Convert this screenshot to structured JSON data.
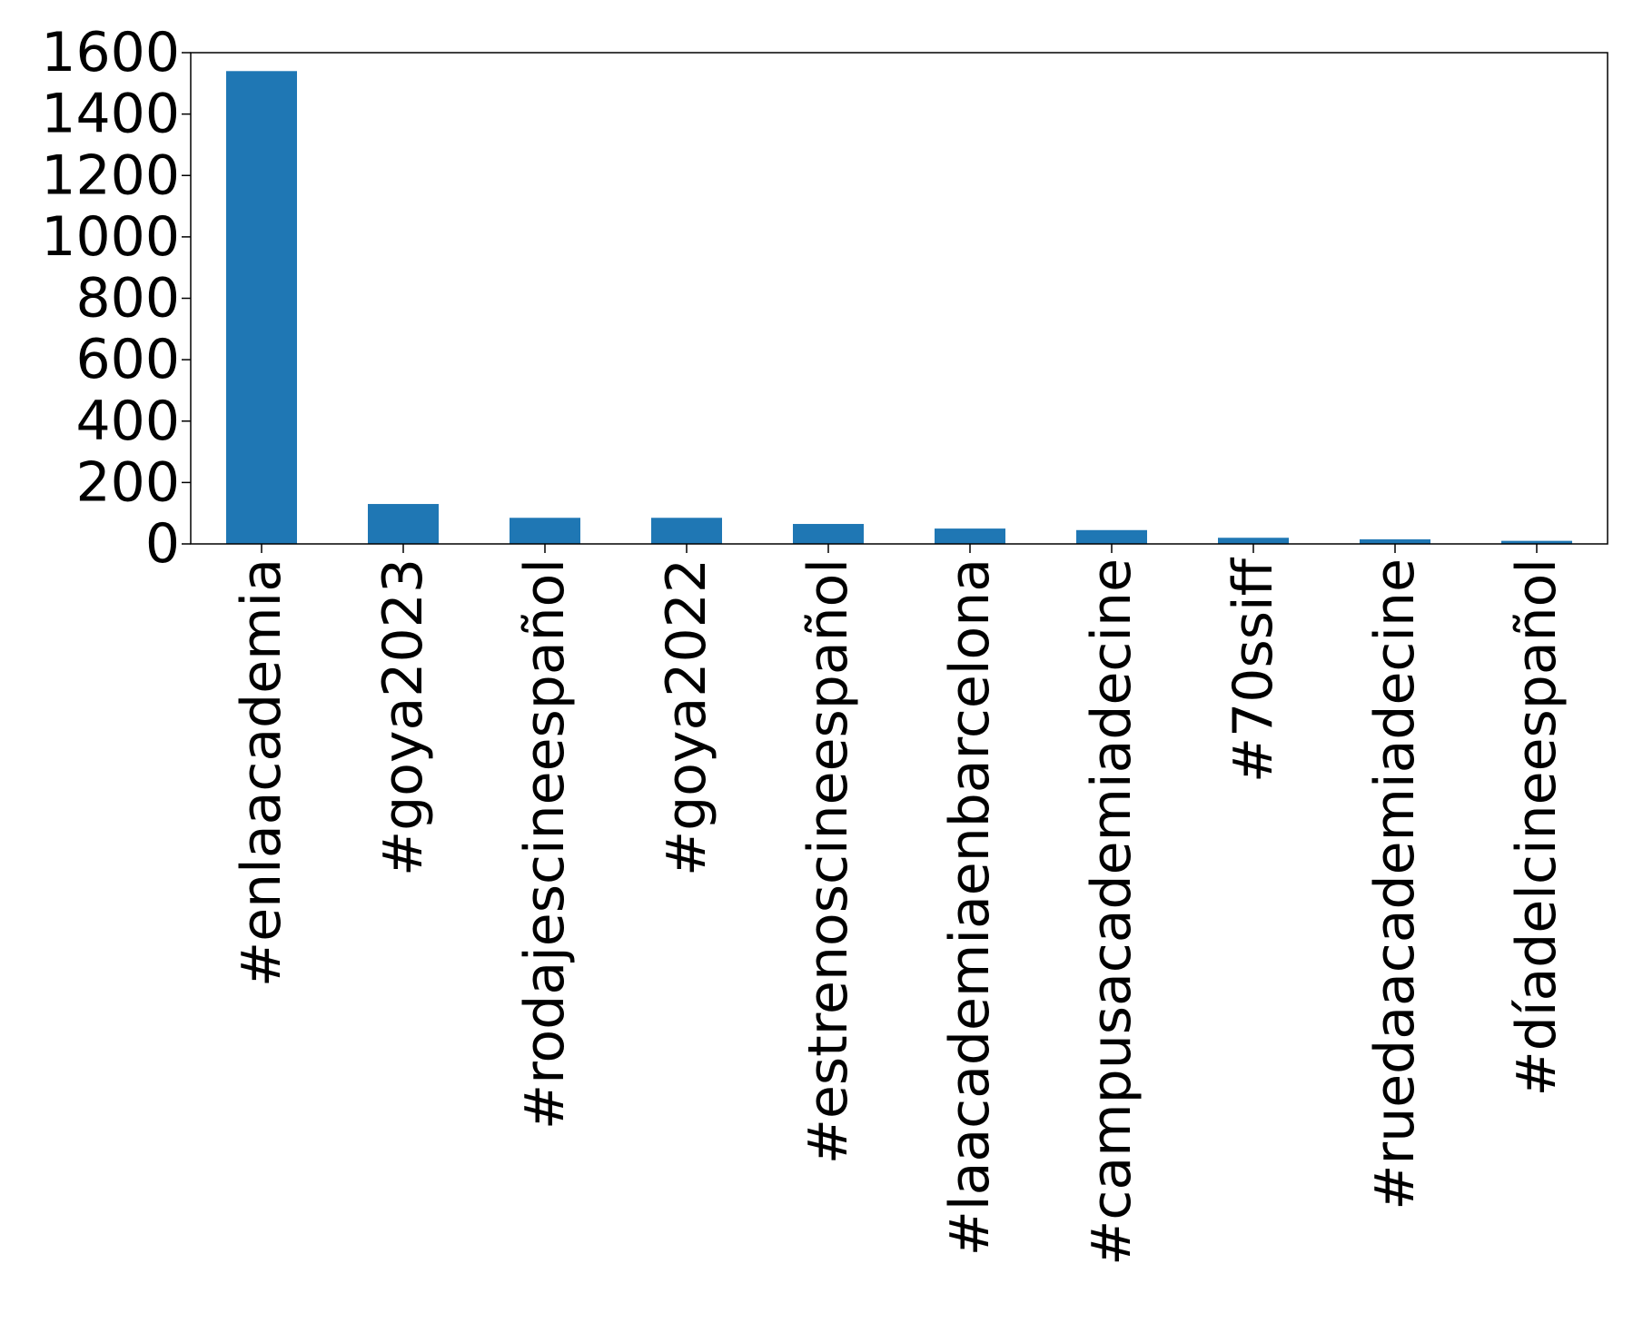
{
  "chart_data": {
    "type": "bar",
    "title": "",
    "xlabel": "",
    "ylabel": "",
    "categories": [
      "#enlaacademia",
      "#goya2023",
      "#rodajescineespañol",
      "#goya2022",
      "#estrenoscineespañol",
      "#laacademiaenbarcelona",
      "#campusacademiadecine",
      "#70ssiff",
      "#ruedaacademiadecine",
      "#díadelcineespañol"
    ],
    "values": [
      1540,
      130,
      85,
      85,
      65,
      50,
      45,
      20,
      15,
      10
    ],
    "ylim": [
      0,
      1600
    ],
    "yticks": [
      0,
      200,
      400,
      600,
      800,
      1000,
      1200,
      1400,
      1600
    ],
    "grid": false,
    "legend": "none",
    "colors": {
      "bar": "#1f77b4",
      "axis": "#000000",
      "text": "#000000",
      "background": "#ffffff"
    }
  }
}
